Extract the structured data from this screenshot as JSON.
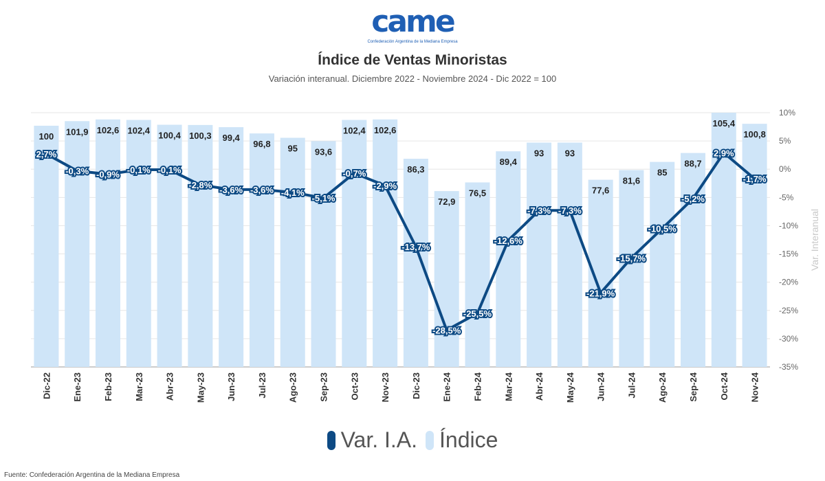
{
  "logo": {
    "word": "came",
    "tagline": "Confederación Argentina de la Mediana Empresa"
  },
  "colors": {
    "bar": "#cfe5f8",
    "line": "#0d4a84",
    "grid": "#e6e6e6"
  },
  "source": "Fuente: Confederación Argentina de la Mediana Empresa",
  "chart_data": {
    "type": "bar",
    "title": "Índice de Ventas Minoristas",
    "subtitle": "Variación interanual. Diciembre 2022 - Noviembre 2024 - Dic 2022 = 100",
    "categories": [
      "Dic-22",
      "Ene-23",
      "Feb-23",
      "Mar-23",
      "Abr-23",
      "May-23",
      "Jun-23",
      "Jul-23",
      "Ago-23",
      "Sep-23",
      "Oct-23",
      "Nov-23",
      "Dic-23",
      "Ene-24",
      "Feb-24",
      "Mar-24",
      "Abr-24",
      "May-24",
      "Jun-24",
      "Jul-24",
      "Ago-24",
      "Sep-24",
      "Oct-24",
      "Nov-24"
    ],
    "series": [
      {
        "name": "Índice",
        "type": "bar",
        "values": [
          100,
          101.9,
          102.6,
          102.4,
          100.4,
          100.3,
          99.4,
          96.8,
          95,
          93.6,
          102.4,
          102.6,
          86.3,
          72.9,
          76.5,
          89.4,
          93,
          93,
          77.6,
          81.6,
          85,
          88.7,
          105.4,
          100.8
        ],
        "labels": [
          "100",
          "101,9",
          "102,6",
          "102,4",
          "100,4",
          "100,3",
          "99,4",
          "96,8",
          "95",
          "93,6",
          "102,4",
          "102,6",
          "86,3",
          "72,9",
          "76,5",
          "89,4",
          "93",
          "93",
          "77,6",
          "81,6",
          "85",
          "88,7",
          "105,4",
          "100,8"
        ]
      },
      {
        "name": "Var. I.A.",
        "type": "line",
        "axis": "right",
        "values": [
          2.7,
          -0.3,
          -0.9,
          -0.1,
          -0.1,
          -2.8,
          -3.6,
          -3.6,
          -4.1,
          -5.1,
          -0.7,
          -2.9,
          -13.7,
          -28.5,
          -25.5,
          -12.6,
          -7.3,
          -7.3,
          -21.9,
          -15.7,
          -10.5,
          -5.2,
          2.9,
          -1.7
        ],
        "labels": [
          "2,7%",
          "-0,3%",
          "-0,9%",
          "-0,1%",
          "-0,1%",
          "-2,8%",
          "-3,6%",
          "-3,6%",
          "-4,1%",
          "-5,1%",
          "-0,7%",
          "-2,9%",
          "-13,7%",
          "-28,5%",
          "-25,5%",
          "-12,6%",
          "-7,3%",
          "-7,3%",
          "-21,9%",
          "-15,7%",
          "-10,5%",
          "-5,2%",
          "2,9%",
          "-1,7%"
        ]
      }
    ],
    "y_right": {
      "label": "Var. Interanual",
      "range": [
        -35,
        10
      ],
      "ticks": [
        10,
        5,
        0,
        -5,
        -10,
        -15,
        -20,
        -25,
        -30,
        -35
      ],
      "tick_labels": [
        "10%",
        "5%",
        "0%",
        "-5%",
        "-10%",
        "-15%",
        "-20%",
        "-25%",
        "-30%",
        "-35%"
      ]
    },
    "bar_scale_range": [
      0,
      105.4
    ],
    "grid": true,
    "legend_position": "bottom"
  }
}
